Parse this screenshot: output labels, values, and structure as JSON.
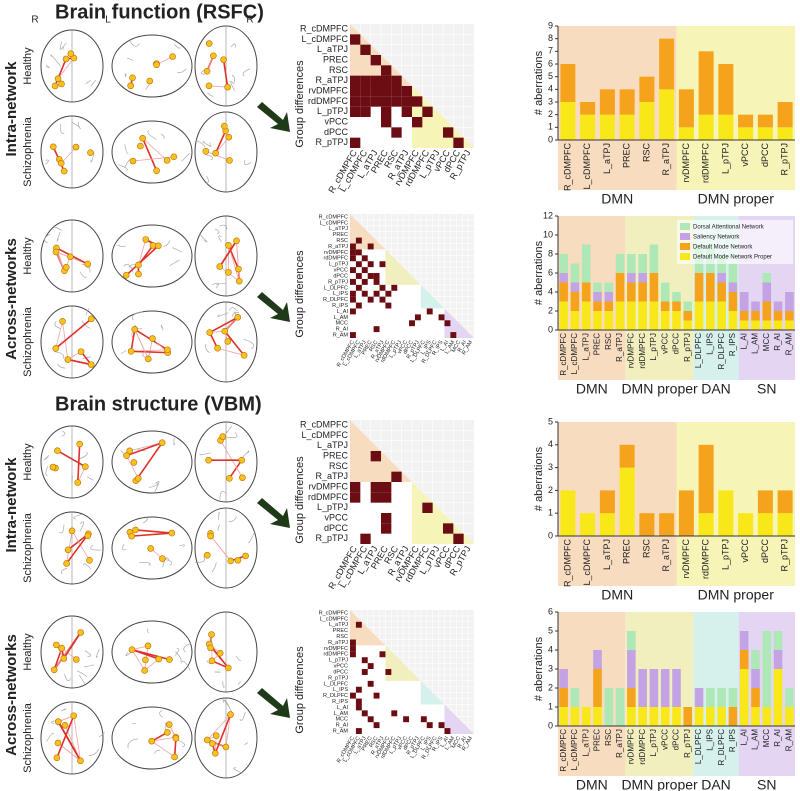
{
  "titles": [
    "Brain function (RSFC)",
    "Brain structure (VBM)"
  ],
  "orientation_labels": [
    "R",
    "L",
    "L",
    "R"
  ],
  "panels": [
    {
      "row_label": "Intra-network",
      "groups": [
        "Healthy",
        "Schizophrenia"
      ],
      "matrix": {
        "axis_label": "Group differences",
        "cells": [
          [
            1,
            0
          ],
          [
            2,
            1
          ],
          [
            3,
            2
          ],
          [
            4,
            3
          ],
          [
            5,
            0
          ],
          [
            5,
            1
          ],
          [
            5,
            2
          ],
          [
            5,
            3
          ],
          [
            5,
            4
          ],
          [
            6,
            0
          ],
          [
            6,
            1
          ],
          [
            6,
            2
          ],
          [
            6,
            3
          ],
          [
            6,
            4
          ],
          [
            6,
            5
          ],
          [
            7,
            0
          ],
          [
            7,
            1
          ],
          [
            7,
            2
          ],
          [
            7,
            3
          ],
          [
            7,
            4
          ],
          [
            7,
            5
          ],
          [
            7,
            6
          ],
          [
            8,
            0
          ],
          [
            8,
            1
          ],
          [
            8,
            3
          ],
          [
            8,
            5
          ],
          [
            8,
            7
          ],
          [
            9,
            3
          ],
          [
            9,
            6
          ],
          [
            10,
            4
          ],
          [
            10,
            9
          ],
          [
            11,
            0
          ],
          [
            11,
            10
          ]
        ]
      }
    },
    {
      "row_label": "Across-networks",
      "groups": [
        "Healthy",
        "Schizophrenia"
      ],
      "matrix": {
        "axis_label": "Group differences",
        "cells": [
          [
            4,
            1
          ],
          [
            5,
            0
          ],
          [
            5,
            3
          ],
          [
            6,
            0
          ],
          [
            6,
            1
          ],
          [
            7,
            0
          ],
          [
            7,
            2
          ],
          [
            8,
            1
          ],
          [
            8,
            3
          ],
          [
            8,
            5
          ],
          [
            9,
            0
          ],
          [
            9,
            2
          ],
          [
            10,
            1
          ],
          [
            10,
            3
          ],
          [
            10,
            4
          ],
          [
            11,
            0
          ],
          [
            11,
            2
          ],
          [
            11,
            4
          ],
          [
            12,
            1
          ],
          [
            12,
            5
          ],
          [
            12,
            7
          ],
          [
            13,
            0
          ],
          [
            13,
            2
          ],
          [
            13,
            4
          ],
          [
            13,
            6
          ],
          [
            14,
            0
          ],
          [
            14,
            3
          ],
          [
            14,
            5
          ],
          [
            15,
            1
          ],
          [
            15,
            6
          ],
          [
            16,
            0
          ],
          [
            16,
            13
          ],
          [
            17,
            11
          ],
          [
            17,
            15
          ],
          [
            18,
            10
          ],
          [
            18,
            16
          ],
          [
            19,
            4
          ],
          [
            20,
            0
          ],
          [
            20,
            17
          ]
        ]
      }
    },
    {
      "row_label": "Intra-network",
      "groups": [
        "Healthy",
        "Schizophrenia"
      ],
      "matrix": {
        "axis_label": "Group differences",
        "cells": [
          [
            3,
            2
          ],
          [
            5,
            4
          ],
          [
            6,
            0
          ],
          [
            6,
            2
          ],
          [
            6,
            3
          ],
          [
            7,
            0
          ],
          [
            7,
            2
          ],
          [
            7,
            3
          ],
          [
            8,
            7
          ],
          [
            9,
            3
          ],
          [
            10,
            3
          ],
          [
            10,
            9
          ],
          [
            11,
            1
          ],
          [
            11,
            10
          ]
        ]
      }
    },
    {
      "row_label": "Across-networks",
      "groups": [
        "Healthy",
        "Schizophrenia"
      ],
      "matrix": {
        "axis_label": "Group differences",
        "cells": [
          [
            2,
            1
          ],
          [
            5,
            0
          ],
          [
            6,
            0
          ],
          [
            7,
            0
          ],
          [
            7,
            5
          ],
          [
            8,
            2
          ],
          [
            9,
            3
          ],
          [
            10,
            2
          ],
          [
            10,
            6
          ],
          [
            12,
            3
          ],
          [
            13,
            1
          ],
          [
            14,
            0
          ],
          [
            14,
            4
          ],
          [
            15,
            1
          ],
          [
            16,
            1
          ],
          [
            17,
            2
          ],
          [
            17,
            7
          ],
          [
            18,
            3
          ],
          [
            18,
            9
          ],
          [
            18,
            12
          ],
          [
            19,
            4
          ],
          [
            19,
            13
          ],
          [
            19,
            15
          ],
          [
            20,
            1
          ],
          [
            20,
            16
          ]
        ]
      }
    }
  ],
  "chart_data": [
    {
      "type": "bar",
      "stacked": true,
      "ylabel": "# aberrations",
      "categories": [
        "R_cDMPFC",
        "L_cDMPFC",
        "L_aTPJ",
        "PREC",
        "RSC",
        "R_aTPJ",
        "rvDMPFC",
        "rdDMPFC",
        "L_pTPJ",
        "vPCC",
        "dPCC",
        "R_pTPJ"
      ],
      "series": [
        {
          "color": "#f8e81a",
          "values": [
            3,
            2,
            2,
            2,
            3,
            4,
            1,
            2,
            2,
            1,
            1,
            1
          ]
        },
        {
          "color": "#f5a21c",
          "values": [
            3,
            1,
            2,
            2,
            2,
            4,
            3,
            5,
            4,
            1,
            1,
            2
          ]
        }
      ],
      "ylim": [
        0,
        9
      ],
      "yticks": [
        0,
        1,
        2,
        3,
        4,
        5,
        6,
        7,
        8,
        9
      ],
      "groups": [
        {
          "label": "DMN",
          "start": 0,
          "end": 5,
          "color": "#f8dcc0"
        },
        {
          "label": "DMN proper",
          "start": 6,
          "end": 11,
          "color": "#f7f4b8"
        }
      ]
    },
    {
      "type": "bar",
      "stacked": true,
      "ylabel": "# aberrations",
      "legend": "upper right",
      "categories": [
        "R_cDMPFC",
        "L_cDMPFC",
        "L_aTPJ",
        "PREC",
        "RSC",
        "R_aTPJ",
        "rvDMPFC",
        "rdDMPFC",
        "L_pTPJ",
        "vPCC",
        "dPCC",
        "R_pTPJ",
        "L_DLPFC",
        "L_IPS",
        "R_DLPFC",
        "R_IPS",
        "L_AI",
        "L_AM",
        "MCC",
        "R_AI",
        "R_AM"
      ],
      "series": [
        {
          "name": "Default Mode Network Proper",
          "color": "#f8e81a",
          "values": [
            3,
            2,
            3,
            2,
            2,
            3,
            3,
            3,
            3,
            2,
            2,
            1,
            3,
            3,
            3,
            2,
            1,
            1,
            1,
            1,
            1
          ]
        },
        {
          "name": "Default Mode Network",
          "color": "#f5a21c",
          "values": [
            2,
            2,
            2,
            1,
            1,
            3,
            2,
            2,
            3,
            1,
            1,
            1,
            3,
            3,
            2,
            2,
            1,
            1,
            2,
            1,
            1
          ]
        },
        {
          "name": "Saliency Network",
          "color": "#c3a3e3",
          "values": [
            1,
            1,
            0,
            1,
            1,
            0,
            1,
            1,
            0,
            0,
            0,
            0,
            0,
            0,
            1,
            1,
            2,
            1,
            2,
            1,
            2
          ]
        },
        {
          "name": "Dorsal Attentional Network",
          "color": "#aee8b6",
          "values": [
            2,
            2,
            4,
            1,
            1,
            2,
            2,
            2,
            3,
            2,
            1,
            1,
            3,
            3,
            2,
            2,
            0,
            0,
            1,
            0,
            0
          ]
        }
      ],
      "ylim": [
        0,
        12
      ],
      "yticks": [
        0,
        2,
        4,
        6,
        8,
        10,
        12
      ],
      "groups": [
        {
          "label": "DMN",
          "start": 0,
          "end": 5,
          "color": "#f8dcc0"
        },
        {
          "label": "DMN proper",
          "start": 6,
          "end": 11,
          "color": "#f1efbe"
        },
        {
          "label": "DAN",
          "start": 12,
          "end": 15,
          "color": "#d6f0ec"
        },
        {
          "label": "SN",
          "start": 16,
          "end": 20,
          "color": "#e4d6f3"
        }
      ]
    },
    {
      "type": "bar",
      "stacked": true,
      "ylabel": "# aberrations",
      "categories": [
        "R_cDMPFC",
        "L_cDMPFC",
        "L_aTPJ",
        "PREC",
        "RSC",
        "R_aTPJ",
        "rvDMPFC",
        "rdDMPFC",
        "L_pTPJ",
        "vPCC",
        "dPCC",
        "R_pTPJ"
      ],
      "series": [
        {
          "color": "#f8e81a",
          "values": [
            2,
            1,
            1,
            3,
            0,
            0,
            0,
            1,
            2,
            1,
            1,
            1
          ]
        },
        {
          "color": "#f5a21c",
          "values": [
            0,
            0,
            1,
            1,
            1,
            1,
            2,
            3,
            0,
            0,
            1,
            1
          ]
        }
      ],
      "ylim": [
        0,
        5
      ],
      "yticks": [
        0,
        1,
        2,
        3,
        4,
        5
      ],
      "groups": [
        {
          "label": "DMN",
          "start": 0,
          "end": 5,
          "color": "#f8dcc0"
        },
        {
          "label": "DMN proper",
          "start": 6,
          "end": 11,
          "color": "#f7f4b8"
        }
      ]
    },
    {
      "type": "bar",
      "stacked": true,
      "ylabel": "# aberrations",
      "categories": [
        "R_cDMPFC",
        "L_cDMPFC",
        "L_aTPJ",
        "PREC",
        "RSC",
        "R_aTPJ",
        "rvDMPFC",
        "rdDMPFC",
        "L_pTPJ",
        "vPCC",
        "dPCC",
        "R_pTPJ",
        "L_DLPFC",
        "L_IPS",
        "R_DLPFC",
        "R_IPS",
        "L_AI",
        "L_AM",
        "MCC",
        "R_AI",
        "R_AM"
      ],
      "series": [
        {
          "color": "#f8e81a",
          "values": [
            1,
            1,
            1,
            1,
            0,
            0,
            1,
            1,
            1,
            1,
            1,
            0,
            1,
            1,
            1,
            0,
            3,
            1,
            1,
            3,
            1
          ]
        },
        {
          "color": "#f5a21c",
          "values": [
            1,
            0,
            0,
            2,
            0,
            0,
            1,
            0,
            0,
            0,
            0,
            1,
            0,
            0,
            0,
            1,
            1,
            1,
            0,
            0,
            0
          ]
        },
        {
          "color": "#c3a3e3",
          "values": [
            1,
            0,
            0,
            1,
            0,
            0,
            2,
            2,
            2,
            2,
            2,
            0,
            1,
            0,
            0,
            0,
            1,
            1,
            0,
            1,
            0
          ]
        },
        {
          "color": "#aee8b6",
          "values": [
            0,
            1,
            0,
            0,
            2,
            2,
            1,
            0,
            0,
            0,
            0,
            0,
            0,
            1,
            1,
            1,
            0,
            1,
            4,
            1,
            1
          ]
        }
      ],
      "ylim": [
        0,
        6
      ],
      "yticks": [
        0,
        1,
        2,
        3,
        4,
        5,
        6
      ],
      "groups": [
        {
          "label": "DMN",
          "start": 0,
          "end": 5,
          "color": "#f8dcc0"
        },
        {
          "label": "DMN proper",
          "start": 6,
          "end": 11,
          "color": "#f1efbe"
        },
        {
          "label": "DAN",
          "start": 12,
          "end": 15,
          "color": "#d6f0ec"
        },
        {
          "label": "SN",
          "start": 16,
          "end": 20,
          "color": "#e4d6f3"
        }
      ]
    }
  ]
}
